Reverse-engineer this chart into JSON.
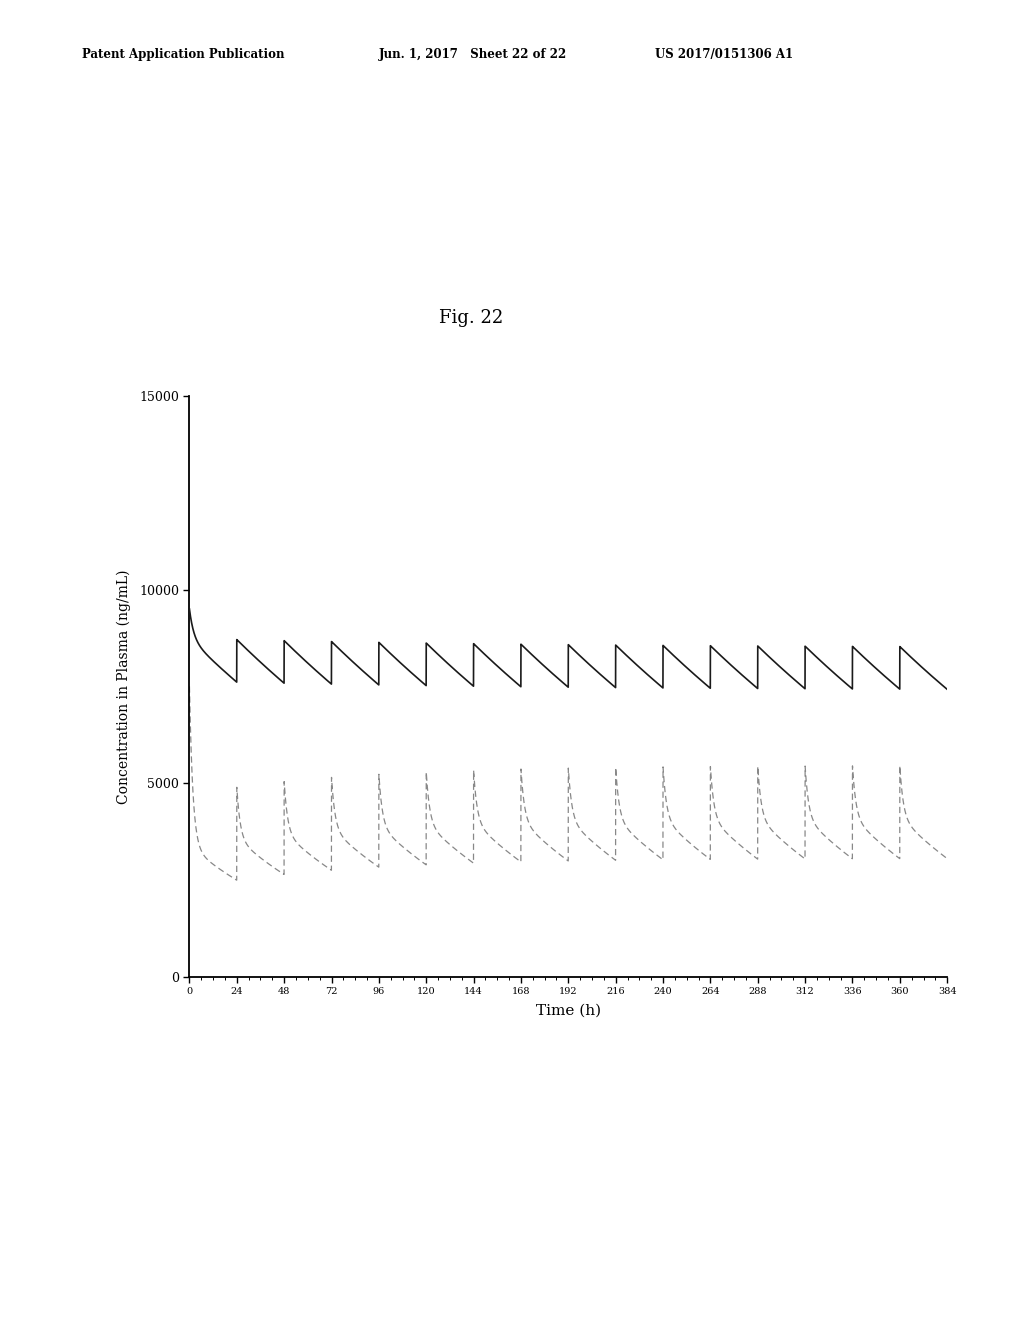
{
  "fig_label": "Fig. 22",
  "patent_header_left": "Patent Application Publication",
  "patent_header_mid": "Jun. 1, 2017   Sheet 22 of 22",
  "patent_header_right": "US 2017/0151306 A1",
  "xlabel": "Time (h)",
  "ylabel": "Concentration in Plasma (ng/mL)",
  "xlim": [
    0,
    384
  ],
  "ylim": [
    0,
    15000
  ],
  "yticks": [
    0,
    5000,
    10000,
    15000
  ],
  "xticks": [
    0,
    24,
    48,
    72,
    96,
    120,
    144,
    168,
    192,
    216,
    240,
    264,
    288,
    312,
    336,
    360,
    384
  ],
  "background_color": "#ffffff",
  "solid_line_color": "#1a1a1a",
  "dashed_line_color": "#888888",
  "dose_interval": 24,
  "total_time": 384
}
